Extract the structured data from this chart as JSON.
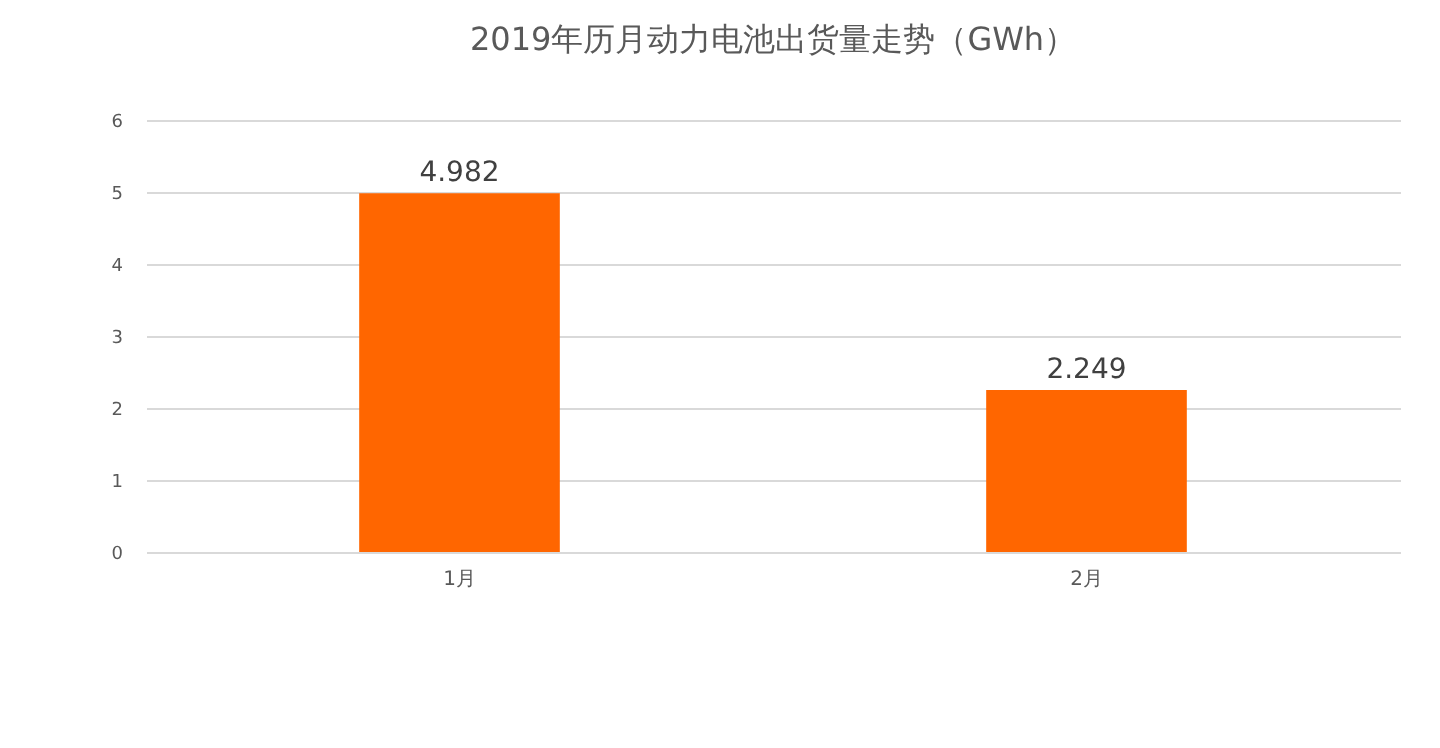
{
  "chart_data": {
    "type": "bar",
    "title": "2019年历月动力电池出货量走势（GWh）",
    "categories": [
      "1月",
      "2月"
    ],
    "values": [
      4.982,
      2.249
    ],
    "color": "#ff6600",
    "ylim": [
      0,
      6
    ],
    "yticks": [
      0,
      1,
      2,
      3,
      4,
      5,
      6
    ],
    "grid": "y",
    "data_labels": true
  }
}
